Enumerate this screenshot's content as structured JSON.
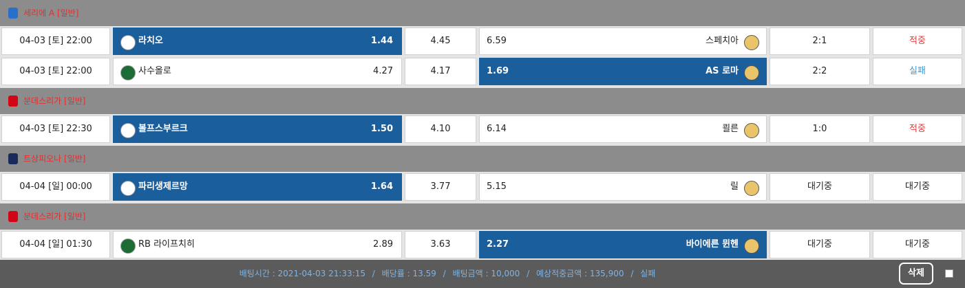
{
  "groups": [
    {
      "league": "세리에 A [일반]",
      "icon": "#2a6fc9",
      "matches": [
        {
          "time": "04-03 [토] 22:00",
          "home": "라치오",
          "home_odds": "1.44",
          "draw_odds": "4.45",
          "away_odds": "6.59",
          "away": "스페치아",
          "score": "2:1",
          "result": "적중",
          "result_color": "#e23b3b",
          "pick": "home"
        },
        {
          "time": "04-03 [토] 22:00",
          "home": "사수올로",
          "home_odds": "4.27",
          "draw_odds": "4.17",
          "away_odds": "1.69",
          "away": "AS 로마",
          "score": "2:2",
          "result": "실패",
          "result_color": "#3a9ad9",
          "pick": "away"
        }
      ]
    },
    {
      "league": "분데스리가 [일반]",
      "icon": "#d20515",
      "matches": [
        {
          "time": "04-03 [토] 22:30",
          "home": "볼프스부르크",
          "home_odds": "1.50",
          "draw_odds": "4.10",
          "away_odds": "6.14",
          "away": "쾰른",
          "score": "1:0",
          "result": "적중",
          "result_color": "#e23b3b",
          "pick": "home"
        }
      ]
    },
    {
      "league": "트상피오나 [일반]",
      "icon": "#1a2a5a",
      "matches": [
        {
          "time": "04-04 [일] 00:00",
          "home": "파리생제르망",
          "home_odds": "1.64",
          "draw_odds": "3.77",
          "away_odds": "5.15",
          "away": "릴",
          "score": "대기중",
          "result": "대기중",
          "result_color": "#222222",
          "pick": "home"
        }
      ]
    },
    {
      "league": "분데스리가 [일반]",
      "icon": "#d20515",
      "matches": [
        {
          "time": "04-04 [일] 01:30",
          "home": "RB 라이프치히",
          "home_odds": "2.89",
          "draw_odds": "3.63",
          "away_odds": "2.27",
          "away": "바이에른 뮌헨",
          "score": "대기중",
          "result": "대기중",
          "result_color": "#222222",
          "pick": "away"
        }
      ]
    }
  ],
  "footer": {
    "items": [
      "배팅시간 : 2021-04-03 21:33:15",
      "배당률 : 13.59",
      "배팅금액 : 10,000",
      "예상적중금액 : 135,900",
      "실패"
    ],
    "separator": "/",
    "delete": "삭제"
  }
}
